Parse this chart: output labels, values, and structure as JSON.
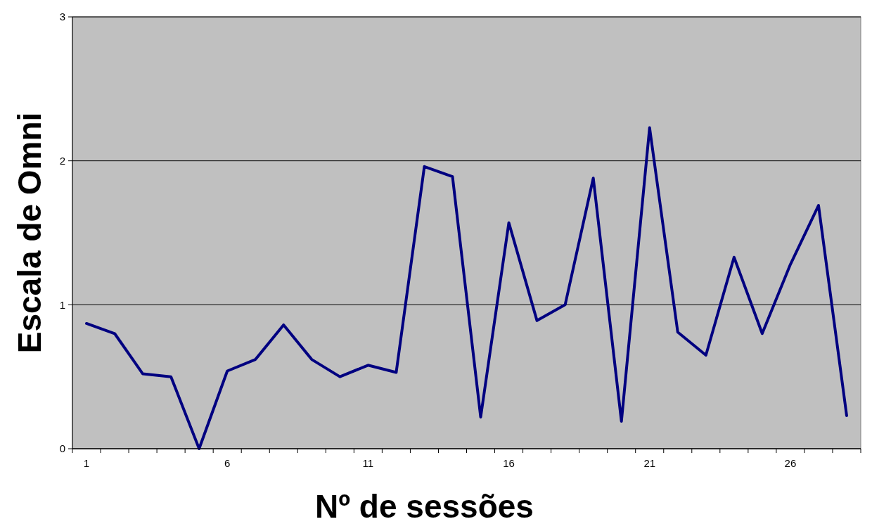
{
  "chart_data": {
    "type": "line",
    "xlabel": "Nº de sessões",
    "ylabel": "Escala de Omni",
    "categories": [
      "1",
      null,
      null,
      null,
      null,
      "6",
      null,
      null,
      null,
      null,
      "11",
      null,
      null,
      null,
      null,
      "16",
      null,
      null,
      null,
      null,
      "21",
      null,
      null,
      null,
      null,
      "26",
      null,
      null
    ],
    "series": [
      {
        "color": "#000080",
        "values": [
          0.87,
          0.8,
          0.52,
          0.5,
          0,
          0.54,
          0.62,
          0.86,
          0.62,
          0.5,
          0.58,
          0.53,
          1.96,
          1.89,
          0.22,
          1.57,
          0.89,
          1.0,
          1.88,
          0.19,
          2.23,
          0.81,
          0.65,
          1.33,
          0.8,
          1.28,
          1.69,
          0.23
        ]
      }
    ],
    "ylim": [
      0,
      3
    ],
    "yticks": [
      0,
      1,
      2,
      3
    ],
    "grid": "y",
    "marker": "none",
    "line_style": "solid"
  }
}
